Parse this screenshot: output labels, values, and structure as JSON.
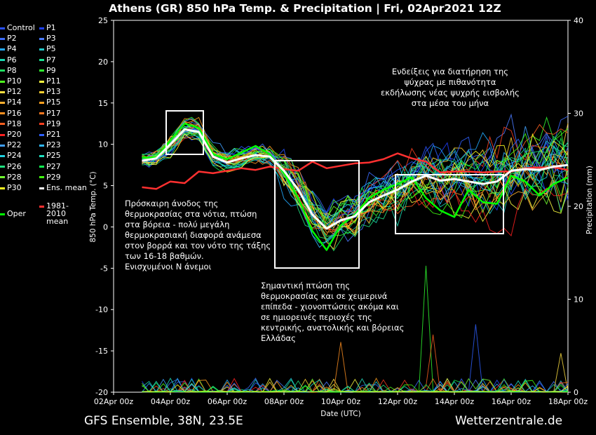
{
  "title": "Athens  (GR)  850 hPa Temp. & Precipitation | Fri, 02Apr2021 12Z",
  "footer_left": "GFS Ensemble, 38N, 23.5E",
  "footer_right": "Wetterzentrale.de",
  "annotations": [
    {
      "id": "a1",
      "lines": [
        "Ενδείξεις για διατήρηση της",
        "ψύχρας με πιθανότητα",
        "εκδήλωσης νέας ψυχρής εισβολής",
        "στα μέσα του μήνα"
      ]
    },
    {
      "id": "a2",
      "lines": [
        "Πρόσκαιρη άνοδος της",
        "θερμοκρασίας στα νότια, πτώση",
        "στα βόρεια - πολύ μεγάλη",
        "θερμοκρασιακή διαφορά ανάμεσα",
        "στον βορρά και τον νότο της τάξης",
        "των 16-18 βαθμών.",
        "Ενισχυμένοι Ν άνεμοι"
      ]
    },
    {
      "id": "a3",
      "lines": [
        "Σημαντική πτώση της",
        "θερμοκρασίας και σε χειμερινά",
        "επίπεδα - χιονοπτώσεις ακόμα και",
        "σε ημιορεινές περιοχές της",
        "κεντρικής, ανατολικής και βόρειας",
        "Ελλάδας"
      ]
    }
  ],
  "legend": [
    {
      "label": "Control",
      "color": "#2850ff"
    },
    {
      "label": "P1",
      "color": "#1e40ff"
    },
    {
      "label": "P2",
      "color": "#3c6cff"
    },
    {
      "label": "P3",
      "color": "#4a7aff"
    },
    {
      "label": "P4",
      "color": "#22aaff"
    },
    {
      "label": "P5",
      "color": "#20c8c8"
    },
    {
      "label": "P6",
      "color": "#18d8b0"
    },
    {
      "label": "P7",
      "color": "#18e090"
    },
    {
      "label": "P8",
      "color": "#20e060"
    },
    {
      "label": "P9",
      "color": "#30ff30"
    },
    {
      "label": "P10",
      "color": "#50ff20"
    },
    {
      "label": "P11",
      "color": "#ffff40"
    },
    {
      "label": "P12",
      "color": "#ffe040"
    },
    {
      "label": "P13",
      "color": "#ffd030"
    },
    {
      "label": "P14",
      "color": "#ffb030"
    },
    {
      "label": "P15",
      "color": "#ffa020"
    },
    {
      "label": "P16",
      "color": "#ff9020"
    },
    {
      "label": "P17",
      "color": "#ff7820"
    },
    {
      "label": "P18",
      "color": "#ff6020"
    },
    {
      "label": "P19",
      "color": "#ff4020"
    },
    {
      "label": "P20",
      "color": "#ff2020"
    },
    {
      "label": "P21",
      "color": "#2e60ff"
    },
    {
      "label": "P22",
      "color": "#40a0ff"
    },
    {
      "label": "P23",
      "color": "#30b8ff"
    },
    {
      "label": "P24",
      "color": "#20d0e0"
    },
    {
      "label": "P25",
      "color": "#20e0c0"
    },
    {
      "label": "P26",
      "color": "#20e080"
    },
    {
      "label": "P27",
      "color": "#10f050"
    },
    {
      "label": "P28",
      "color": "#70ff30"
    },
    {
      "label": "P29",
      "color": "#40ff10"
    },
    {
      "label": "P30",
      "color": "#ffff20"
    },
    {
      "label": "Ens. mean",
      "color": "#ffffff"
    },
    {
      "label": "Oper",
      "color": "#00ff00"
    },
    {
      "label": "1981-2010 mean",
      "color": "#ff3030"
    }
  ],
  "chart_data": {
    "type": "line",
    "xlabel": "Date (UTC)",
    "ylabel": "850 hPa Temp. (°C)",
    "ylabel_right": "Precipitation (mm)",
    "ylim": [
      -20,
      25
    ],
    "ylim_right": [
      0,
      40
    ],
    "yticks": [
      "25",
      "20",
      "15",
      "10",
      "5",
      "0",
      "-5",
      "-10",
      "-15",
      "-20"
    ],
    "yticks_right": [
      "40",
      "30",
      "20",
      "10",
      "0"
    ],
    "xticks": [
      "02Apr 00z",
      "04Apr 00z",
      "06Apr 00z",
      "08Apr 00z",
      "10Apr 00z",
      "12Apr 00z",
      "14Apr 00z",
      "16Apr 00z",
      "18Apr 00z"
    ],
    "x_days": [
      2,
      4,
      6,
      8,
      10,
      12,
      14,
      16,
      18
    ],
    "x_range_days": [
      2,
      18
    ],
    "grid": false,
    "ens_mean": {
      "name": "Ens. mean",
      "x": [
        3,
        3.5,
        4,
        4.5,
        5,
        5.5,
        6,
        6.5,
        7,
        7.5,
        8,
        8.5,
        9,
        9.5,
        10,
        10.5,
        11,
        11.5,
        12,
        12.5,
        13,
        13.5,
        14,
        14.5,
        15,
        15.5,
        16,
        16.5,
        17,
        17.5,
        18
      ],
      "y": [
        8,
        8.3,
        10,
        11.8,
        11.5,
        8.5,
        7.8,
        8.3,
        8.7,
        8.5,
        6.8,
        4.5,
        1.5,
        -0.2,
        0.8,
        1.3,
        3,
        3.8,
        4.5,
        5.5,
        6.2,
        5.6,
        5.8,
        5.5,
        5.2,
        5.5,
        6.8,
        7,
        6.9,
        7.3,
        7.5
      ]
    },
    "climate_mean": {
      "name": "1981-2010 mean",
      "x": [
        3,
        3.5,
        4,
        4.5,
        5,
        5.5,
        6,
        6.5,
        7,
        7.5,
        8,
        8.5,
        9,
        9.5,
        10,
        10.5,
        11,
        11.5,
        12,
        12.5,
        13,
        13.5,
        14,
        14.5,
        15,
        15.5,
        16,
        16.5,
        17,
        17.5,
        18
      ],
      "y": [
        4.8,
        4.6,
        5.5,
        5.3,
        6.7,
        6.5,
        6.8,
        7.1,
        6.9,
        7.3,
        7.0,
        6.8,
        7.9,
        7.1,
        7.4,
        7.7,
        7.8,
        8.2,
        8.9,
        8.3,
        7.9,
        6.6,
        6.7,
        6.7,
        6.6,
        6.7,
        6.7,
        7.1,
        7.2,
        7.2,
        6.9
      ]
    },
    "oper": {
      "name": "Oper",
      "x": [
        3,
        3.5,
        4,
        4.5,
        5,
        5.5,
        6,
        6.5,
        7,
        7.5,
        8,
        8.5,
        9,
        9.5,
        10,
        10.5,
        11,
        11.5,
        12,
        12.5,
        13,
        13.5,
        14,
        14.5,
        15,
        15.5,
        16,
        16.5,
        17,
        17.5,
        18
      ],
      "y": [
        8.4,
        8.4,
        10.5,
        12.5,
        12,
        8.8,
        8.2,
        9,
        9.8,
        8.8,
        6.5,
        3.5,
        -0.5,
        -2.8,
        0.2,
        1.5,
        3.5,
        4.5,
        5.2,
        6,
        3.5,
        2,
        1.2,
        4.5,
        3,
        2.8,
        6.2,
        5.5,
        3.8,
        5.2,
        6
      ]
    },
    "member_count": 31,
    "precip_peaks_mm": [
      {
        "x_day": 9.5,
        "value": 1.1
      },
      {
        "x_day": 10,
        "value": 5.4
      },
      {
        "x_day": 11,
        "value": 0.8
      },
      {
        "x_day": 13.0,
        "value": 13.6
      },
      {
        "x_day": 13.25,
        "value": 6.2
      },
      {
        "x_day": 14.75,
        "value": 7.3
      },
      {
        "x_day": 17.75,
        "value": 4.2
      }
    ]
  }
}
